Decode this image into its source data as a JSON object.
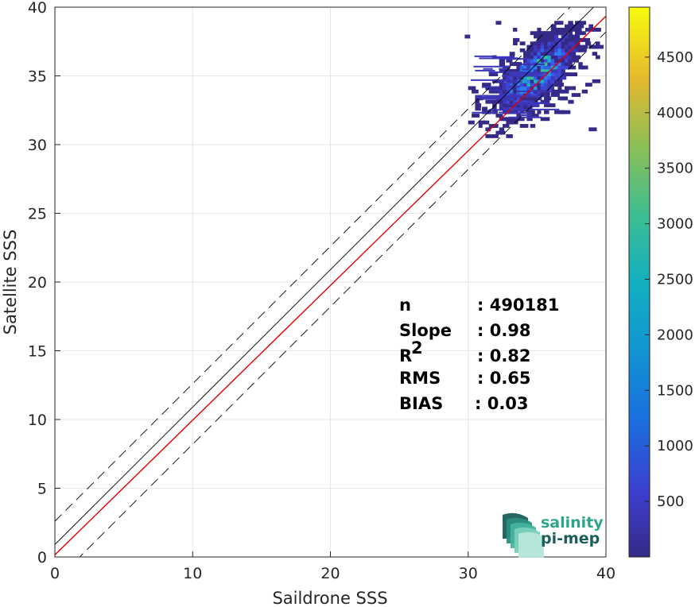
{
  "chart_data": {
    "type": "heatmap",
    "xlabel": "Saildrone SSS",
    "ylabel": "Satellite SSS",
    "xlim": [
      0,
      40
    ],
    "ylim": [
      0,
      40
    ],
    "xticks": [
      "0",
      "10",
      "20",
      "30",
      "40"
    ],
    "yticks": [
      "0",
      "5",
      "10",
      "15",
      "20",
      "25",
      "30",
      "35",
      "40"
    ],
    "grid": true,
    "colorbar": {
      "range": [
        0,
        4950
      ],
      "ticks": [
        "500",
        "1000",
        "1500",
        "2000",
        "2500",
        "3000",
        "3500",
        "4000",
        "4500"
      ],
      "colormap": "parula"
    },
    "density_region": {
      "x_range": [
        29.5,
        39.5
      ],
      "y_range": [
        30.5,
        39.0
      ],
      "peak": [
        34.8,
        35.2
      ]
    },
    "lines": [
      {
        "name": "identity",
        "style": "solid",
        "color": "#000000",
        "slope": 1.0,
        "intercept": 0.9
      },
      {
        "name": "upper-bound",
        "style": "dashed",
        "color": "#000000",
        "slope": 1.0,
        "intercept": 2.6
      },
      {
        "name": "lower-bound",
        "style": "dashed",
        "color": "#000000",
        "slope": 1.0,
        "intercept": -1.8
      },
      {
        "name": "regression",
        "style": "solid",
        "color": "#e00000",
        "slope": 0.98,
        "intercept": 0.15
      }
    ],
    "stats": [
      {
        "label": "n",
        "sup": "",
        "value": ": 490181"
      },
      {
        "label": "Slope",
        "sup": "",
        "value": ": 0.98"
      },
      {
        "label": "R",
        "sup": "2",
        "value": ": 0.82"
      },
      {
        "label": "RMS",
        "sup": "",
        "value": ": 0.65"
      },
      {
        "label": "BIAS",
        "sup": "",
        "value": ": 0.03"
      }
    ]
  },
  "logo": {
    "line1": "salinity",
    "line2": "pi-mep"
  },
  "colors": {
    "accent": "#2ca58d",
    "logo_dark": "#1b5e5a",
    "regression": "#e00000"
  }
}
